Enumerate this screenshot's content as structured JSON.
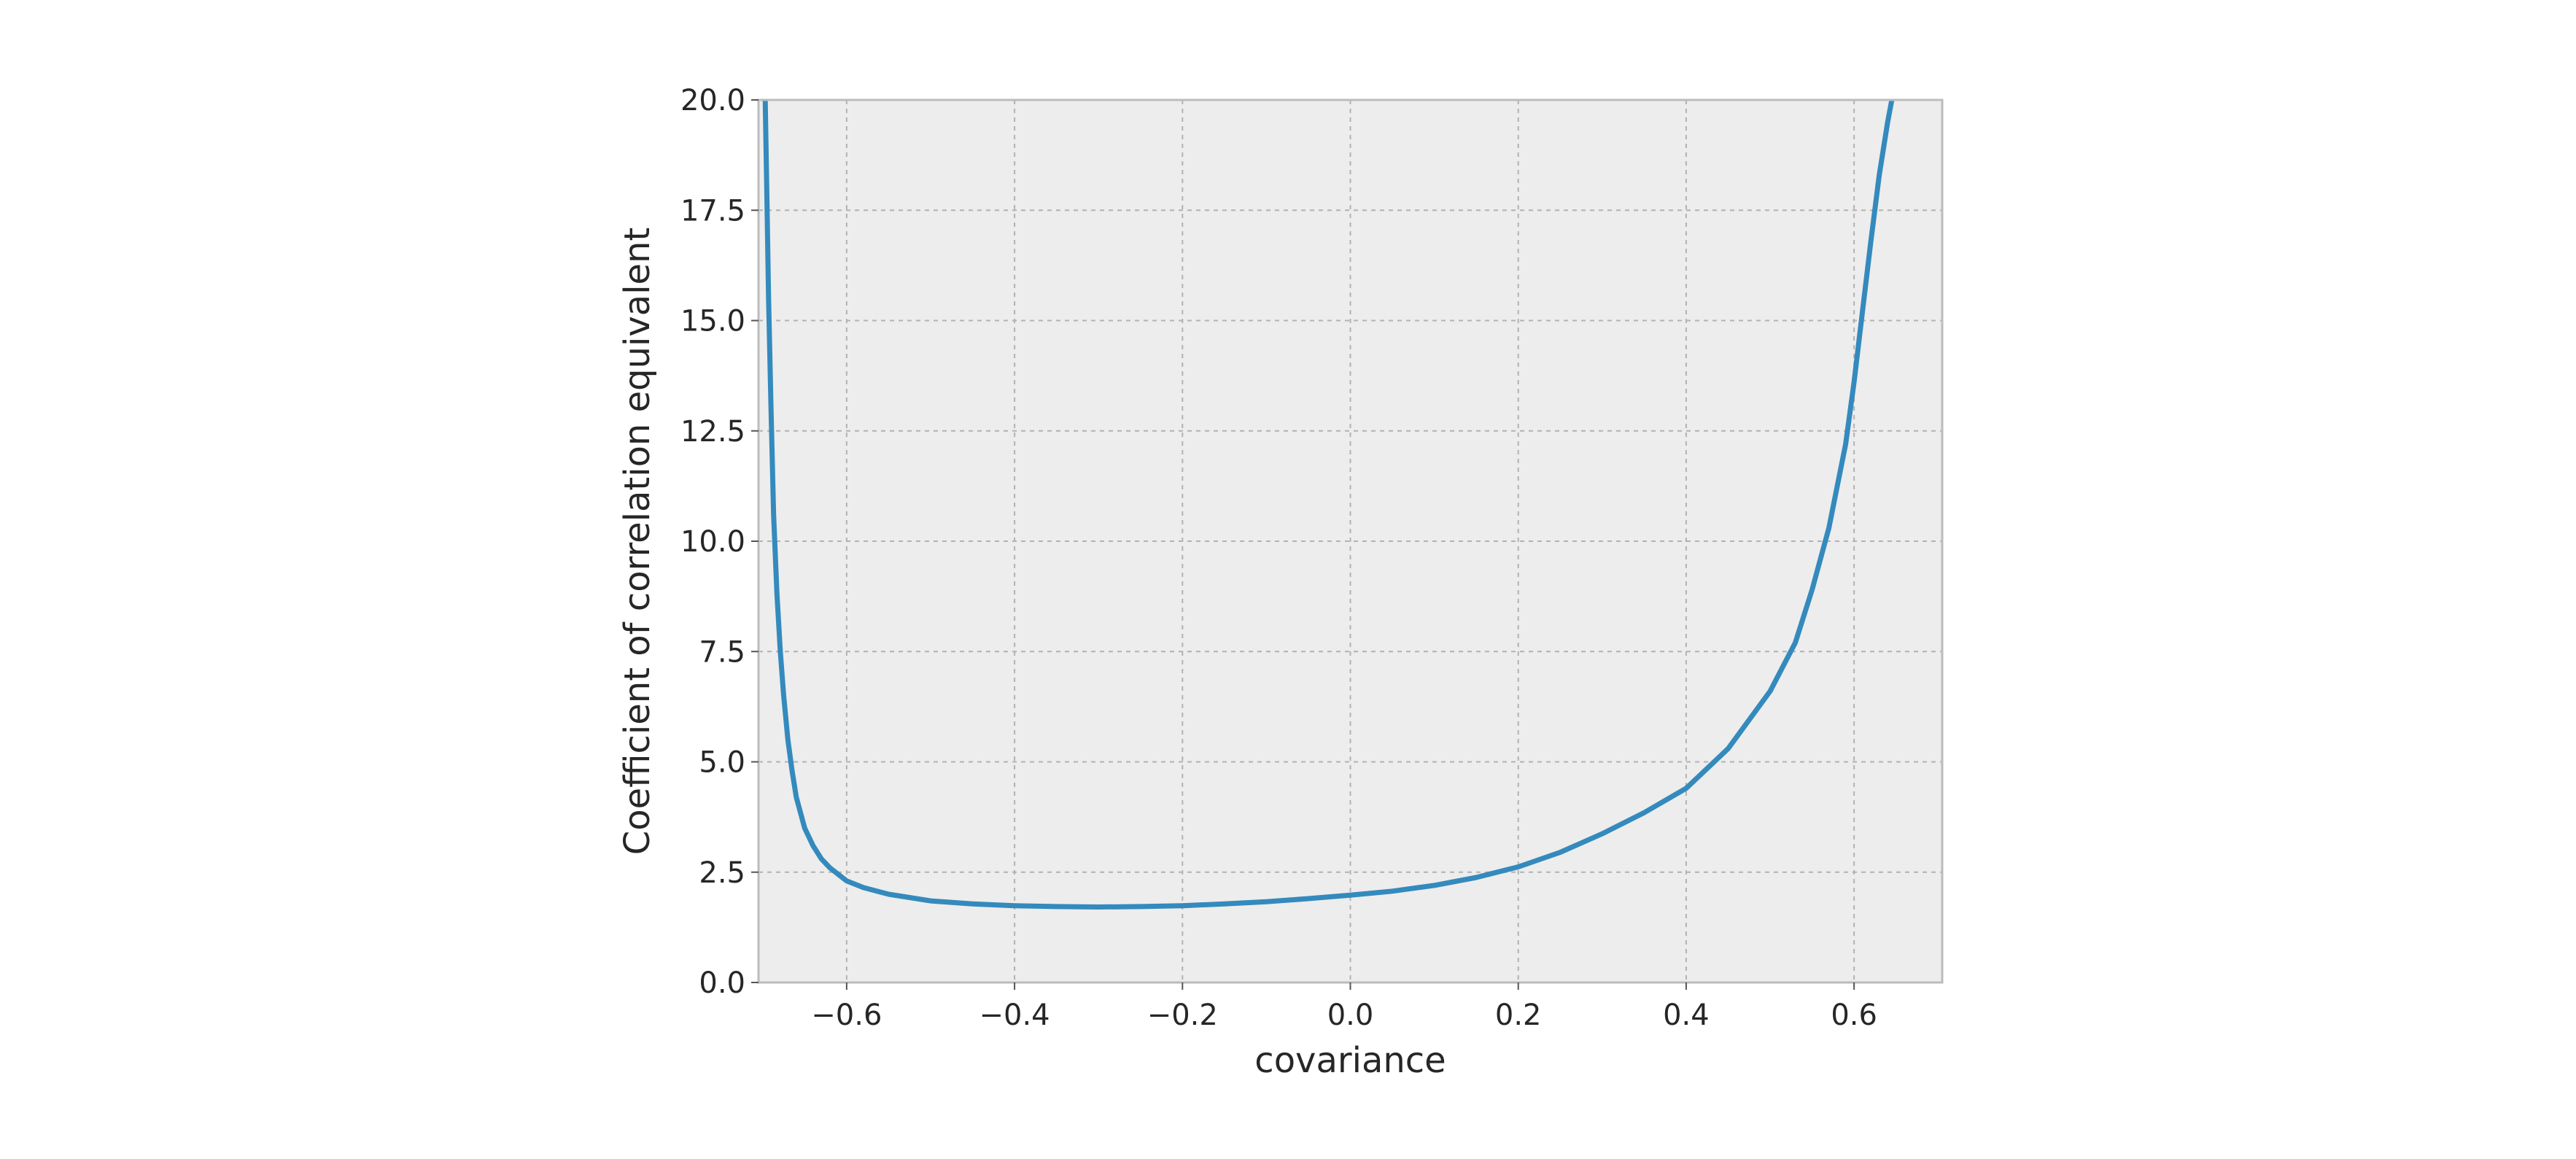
{
  "chart_data": {
    "type": "line",
    "title": "",
    "xlabel": "covariance",
    "ylabel": "Coefficient of correlation equivalent",
    "xlim": [
      -0.705,
      0.705
    ],
    "ylim": [
      0,
      20
    ],
    "x_ticks": [
      -0.6,
      -0.4,
      -0.2,
      0.0,
      0.2,
      0.4,
      0.6
    ],
    "x_tick_labels": [
      "−0.6",
      "−0.4",
      "−0.2",
      "0.0",
      "0.2",
      "0.4",
      "0.6"
    ],
    "y_ticks": [
      0,
      2.5,
      5,
      7.5,
      10,
      12.5,
      15,
      17.5,
      20
    ],
    "y_tick_labels": [
      "0.0",
      "2.5",
      "5.0",
      "7.5",
      "10.0",
      "12.5",
      "15.0",
      "17.5",
      "20.0"
    ],
    "grid": true,
    "series": [
      {
        "color": "#348ABD",
        "x": [
          -0.697,
          -0.695,
          -0.693,
          -0.69,
          -0.687,
          -0.683,
          -0.679,
          -0.675,
          -0.67,
          -0.665,
          -0.66,
          -0.65,
          -0.64,
          -0.63,
          -0.62,
          -0.6,
          -0.58,
          -0.55,
          -0.5,
          -0.45,
          -0.4,
          -0.35,
          -0.3,
          -0.25,
          -0.2,
          -0.15,
          -0.1,
          -0.05,
          0.0,
          0.05,
          0.1,
          0.15,
          0.2,
          0.25,
          0.3,
          0.35,
          0.4,
          0.45,
          0.5,
          0.53,
          0.55,
          0.57,
          0.59,
          0.6,
          0.61,
          0.62,
          0.63,
          0.64,
          0.645
        ],
        "y": [
          20.0,
          17.8,
          15.5,
          12.9,
          10.6,
          8.8,
          7.5,
          6.5,
          5.5,
          4.8,
          4.2,
          3.5,
          3.1,
          2.8,
          2.6,
          2.3,
          2.15,
          2.0,
          1.85,
          1.78,
          1.74,
          1.72,
          1.71,
          1.72,
          1.74,
          1.78,
          1.83,
          1.9,
          1.98,
          2.07,
          2.2,
          2.38,
          2.62,
          2.95,
          3.37,
          3.85,
          4.4,
          5.3,
          6.6,
          7.7,
          8.9,
          10.3,
          12.2,
          13.6,
          15.2,
          16.8,
          18.3,
          19.5,
          20.0
        ]
      }
    ]
  }
}
